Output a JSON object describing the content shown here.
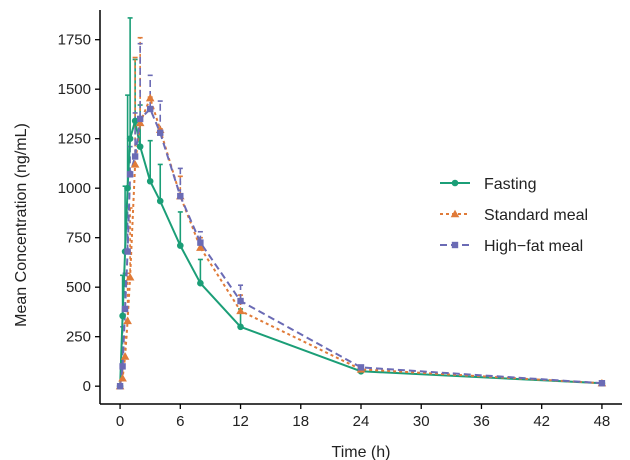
{
  "chart_data": {
    "type": "line",
    "title": "",
    "xlabel": "Time (h)",
    "ylabel": "Mean Concentration (ng/mL)",
    "xlim": [
      -2,
      50
    ],
    "ylim": [
      -90,
      1900
    ],
    "xticks": [
      0,
      6,
      12,
      18,
      24,
      30,
      36,
      42,
      48
    ],
    "yticks": [
      0,
      250,
      500,
      750,
      1000,
      1250,
      1500,
      1750
    ],
    "grid": false,
    "legend_position": "right",
    "series": [
      {
        "name": "Fasting",
        "color": "#1b9e77",
        "marker": "circle",
        "line_style": "solid",
        "x": [
          0,
          0.25,
          0.5,
          0.75,
          1,
          1.5,
          2,
          3,
          4,
          6,
          8,
          12,
          24,
          48
        ],
        "y": [
          0,
          355,
          680,
          1000,
          1250,
          1340,
          1210,
          1035,
          935,
          710,
          520,
          300,
          75,
          15
        ],
        "err_upper": [
          0,
          560,
          1010,
          1470,
          1860,
          1650,
          1420,
          1240,
          1120,
          880,
          640,
          390,
          90,
          20
        ]
      },
      {
        "name": "Standard meal",
        "color": "#e07b39",
        "marker": "triangle",
        "line_style": "dotted",
        "x": [
          0,
          0.25,
          0.5,
          0.75,
          1,
          1.5,
          2,
          3,
          4,
          6,
          8,
          12,
          24,
          48
        ],
        "y": [
          0,
          40,
          150,
          330,
          550,
          1120,
          1330,
          1455,
          1295,
          960,
          700,
          380,
          85,
          15
        ],
        "err_upper": [
          0,
          90,
          250,
          570,
          900,
          1660,
          1760,
          1460,
          1300,
          1060,
          750,
          460,
          100,
          20
        ]
      },
      {
        "name": "High−fat meal",
        "color": "#6b6bb5",
        "marker": "square",
        "line_style": "dashed",
        "x": [
          0,
          0.25,
          0.5,
          0.75,
          1,
          1.5,
          2,
          3,
          4,
          6,
          8,
          12,
          24,
          48
        ],
        "y": [
          0,
          100,
          390,
          680,
          1070,
          1160,
          1350,
          1400,
          1280,
          960,
          725,
          430,
          95,
          15
        ],
        "err_upper": [
          0,
          300,
          570,
          910,
          1210,
          1380,
          1730,
          1570,
          1440,
          1100,
          780,
          510,
          100,
          20
        ]
      }
    ]
  }
}
